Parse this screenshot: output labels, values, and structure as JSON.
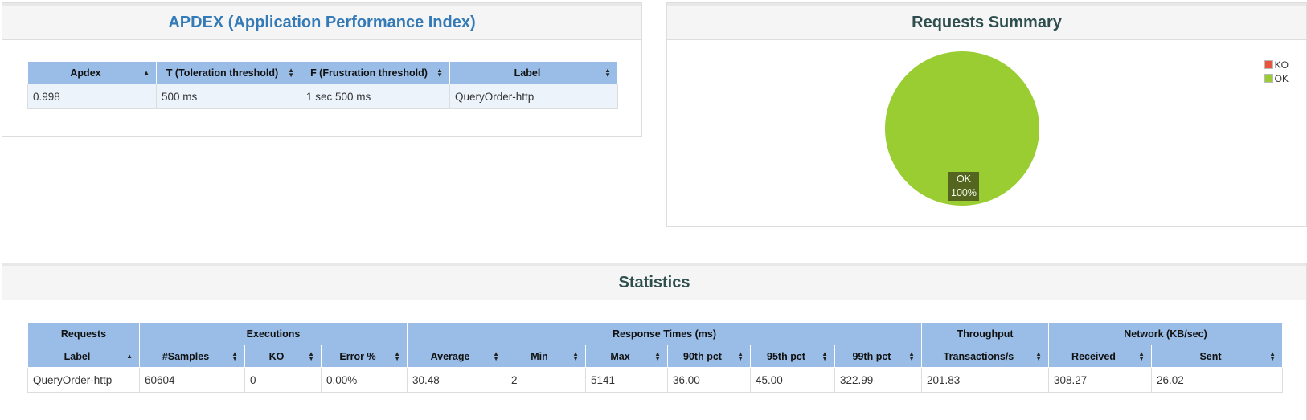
{
  "apdex": {
    "title": "APDEX (Application Performance Index)",
    "headers": [
      "Apdex",
      "T (Toleration threshold)",
      "F (Frustration threshold)",
      "Label"
    ],
    "row": [
      "0.998",
      "500 ms",
      "1 sec 500 ms",
      "QueryOrder-http"
    ]
  },
  "summary": {
    "title": "Requests Summary",
    "legend": [
      {
        "label": "KO",
        "color": "#e8553c"
      },
      {
        "label": "OK",
        "color": "#9acd32"
      }
    ],
    "slice_label": "OK",
    "slice_pct": "100%"
  },
  "chart_data": {
    "type": "pie",
    "title": "Requests Summary",
    "categories": [
      "KO",
      "OK"
    ],
    "values": [
      0,
      100
    ],
    "colors": [
      "#e8553c",
      "#9acd32"
    ],
    "legend": "top-right"
  },
  "statistics": {
    "title": "Statistics",
    "groups": [
      "Requests",
      "Executions",
      "Response Times (ms)",
      "Throughput",
      "Network (KB/sec)"
    ],
    "headers": [
      "Label",
      "#Samples",
      "KO",
      "Error %",
      "Average",
      "Min",
      "Max",
      "90th pct",
      "95th pct",
      "99th pct",
      "Transactions/s",
      "Received",
      "Sent"
    ],
    "row": [
      "QueryOrder-http",
      "60604",
      "0",
      "0.00%",
      "30.48",
      "2",
      "5141",
      "36.00",
      "45.00",
      "322.99",
      "201.83",
      "308.27",
      "26.02"
    ]
  }
}
